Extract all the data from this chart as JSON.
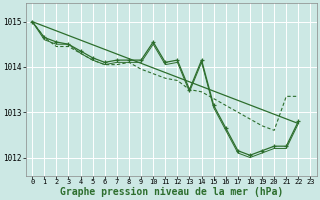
{
  "background_color": "#cce8e4",
  "grid_color": "#ffffff",
  "line_color": "#2d6e2d",
  "xlabel": "Graphe pression niveau de la mer (hPa)",
  "xlabel_fontsize": 7,
  "xlim": [
    -0.5,
    23.5
  ],
  "ylim": [
    1011.6,
    1015.4
  ],
  "yticks": [
    1012,
    1013,
    1014,
    1015
  ],
  "xticks": [
    0,
    1,
    2,
    3,
    4,
    5,
    6,
    7,
    8,
    9,
    10,
    11,
    12,
    13,
    14,
    15,
    16,
    17,
    18,
    19,
    20,
    21,
    22,
    23
  ],
  "series1_x": [
    0,
    1,
    2,
    3,
    4,
    5,
    6,
    7,
    8,
    9,
    10,
    11,
    12,
    13,
    14,
    15,
    16,
    17,
    18,
    19,
    20,
    21,
    22
  ],
  "series1_y": [
    1015.0,
    1014.65,
    1014.55,
    1014.5,
    1014.35,
    1014.2,
    1014.1,
    1014.15,
    1014.15,
    1014.15,
    1014.55,
    1014.1,
    1014.15,
    1013.5,
    1014.15,
    1013.15,
    1012.65,
    1012.15,
    1012.05,
    1012.15,
    1012.25,
    1012.25,
    1012.8
  ],
  "series2_x": [
    0,
    1,
    2,
    3,
    4,
    5,
    6,
    7,
    8,
    9,
    10,
    11,
    12,
    13,
    14,
    15,
    16,
    17,
    18,
    19,
    20,
    21,
    22
  ],
  "series2_y": [
    1015.0,
    1014.6,
    1014.5,
    1014.5,
    1014.3,
    1014.15,
    1014.05,
    1014.1,
    1014.1,
    1014.1,
    1014.5,
    1014.05,
    1014.1,
    1013.45,
    1014.1,
    1013.1,
    1012.6,
    1012.1,
    1012.0,
    1012.1,
    1012.2,
    1012.2,
    1012.75
  ],
  "series3_x": [
    0,
    22
  ],
  "series3_y": [
    1015.0,
    1012.75
  ],
  "dashed_x": [
    0,
    1,
    2,
    3,
    4,
    5,
    6,
    7,
    8,
    9,
    10,
    11,
    12,
    13,
    14,
    15,
    16,
    17,
    18,
    19,
    20,
    21,
    22
  ],
  "dashed_y": [
    1015.0,
    1014.65,
    1014.45,
    1014.45,
    1014.3,
    1014.15,
    1014.05,
    1014.05,
    1014.1,
    1013.95,
    1013.85,
    1013.75,
    1013.7,
    1013.5,
    1013.45,
    1013.3,
    1013.15,
    1013.0,
    1012.85,
    1012.7,
    1012.6,
    1013.35,
    1013.35
  ]
}
